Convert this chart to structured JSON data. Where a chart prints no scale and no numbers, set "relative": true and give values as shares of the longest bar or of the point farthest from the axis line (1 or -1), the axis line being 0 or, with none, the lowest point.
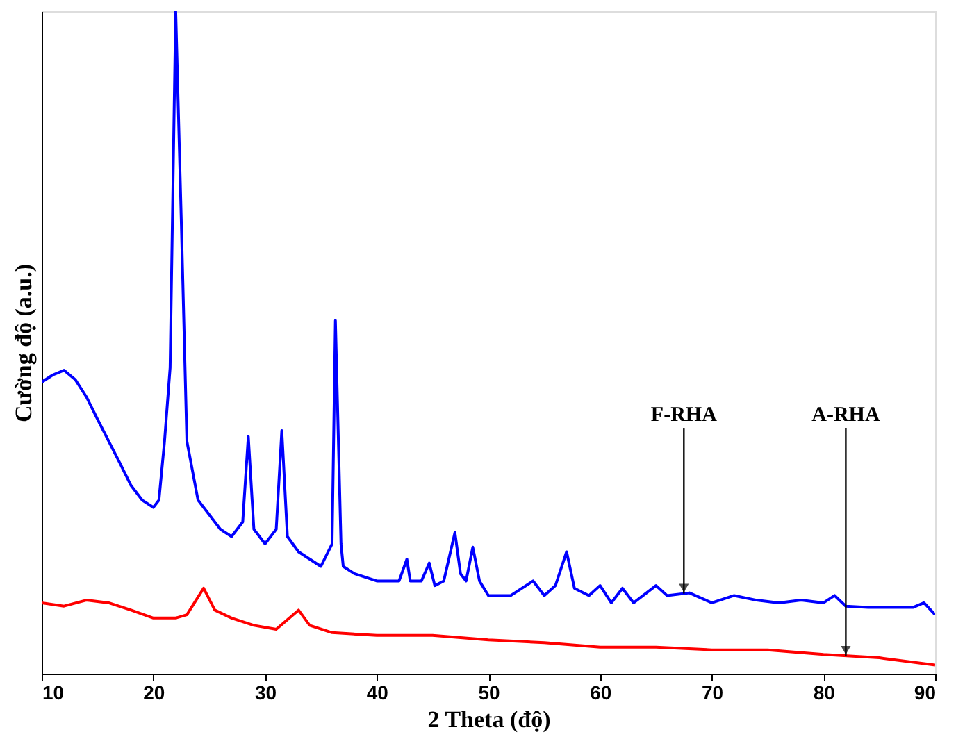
{
  "chart_data": {
    "type": "line",
    "relative": true,
    "xlabel": "2 Theta (độ)",
    "ylabel": "Cường độ (a.u.)",
    "xlim": [
      10,
      90
    ],
    "xticks": [
      10,
      20,
      30,
      40,
      50,
      60,
      70,
      80,
      90
    ],
    "grid": false,
    "marker": "none",
    "line_style": "solid",
    "series": [
      {
        "color": "#0000ff",
        "x": [
          10,
          11,
          12,
          13,
          14,
          15,
          16,
          17,
          18,
          19,
          20,
          20.5,
          21,
          21.5,
          22,
          22.5,
          23,
          24,
          25,
          26,
          27,
          28,
          28.5,
          29,
          30,
          31,
          31.5,
          32,
          33,
          34,
          35,
          36,
          36.3,
          36.8,
          37,
          38,
          40,
          42,
          42.7,
          43,
          44,
          44.7,
          45.2,
          46,
          47,
          47.5,
          48,
          48.6,
          49.2,
          50,
          52,
          54,
          55,
          56,
          57,
          57.7,
          59,
          60,
          61,
          62,
          63,
          65,
          66,
          68,
          70,
          72,
          74,
          76,
          78,
          80,
          81,
          82,
          84,
          86,
          88,
          89,
          90
        ],
        "values": [
          0.44,
          0.451,
          0.458,
          0.444,
          0.418,
          0.384,
          0.351,
          0.318,
          0.284,
          0.262,
          0.251,
          0.262,
          0.351,
          0.462,
          1.0,
          0.684,
          0.351,
          0.262,
          0.24,
          0.218,
          0.207,
          0.229,
          0.358,
          0.218,
          0.196,
          0.218,
          0.367,
          0.207,
          0.184,
          0.173,
          0.162,
          0.196,
          0.533,
          0.196,
          0.162,
          0.151,
          0.14,
          0.14,
          0.173,
          0.14,
          0.14,
          0.167,
          0.133,
          0.14,
          0.213,
          0.151,
          0.14,
          0.191,
          0.14,
          0.118,
          0.118,
          0.14,
          0.118,
          0.133,
          0.184,
          0.129,
          0.118,
          0.133,
          0.107,
          0.129,
          0.107,
          0.133,
          0.118,
          0.122,
          0.107,
          0.118,
          0.111,
          0.107,
          0.111,
          0.107,
          0.118,
          0.102,
          0.1,
          0.1,
          0.1,
          0.107,
          0.089
        ]
      },
      {
        "color": "#ff0000",
        "x": [
          10,
          12,
          14,
          16,
          18,
          20,
          22,
          23,
          24.5,
          25.5,
          27,
          29,
          31,
          33,
          34,
          36,
          40,
          45,
          50,
          55,
          60,
          65,
          70,
          75,
          80,
          85,
          90
        ],
        "values": [
          0.107,
          0.102,
          0.111,
          0.107,
          0.096,
          0.084,
          0.084,
          0.089,
          0.129,
          0.096,
          0.084,
          0.073,
          0.067,
          0.096,
          0.073,
          0.062,
          0.058,
          0.058,
          0.051,
          0.047,
          0.04,
          0.04,
          0.036,
          0.036,
          0.029,
          0.024,
          0.013
        ]
      }
    ],
    "annotations": [
      {
        "text": "F-RHA",
        "x": 67.5,
        "y": 0.121
      },
      {
        "text": "A-RHA",
        "x": 82,
        "y": 0.027
      }
    ]
  }
}
